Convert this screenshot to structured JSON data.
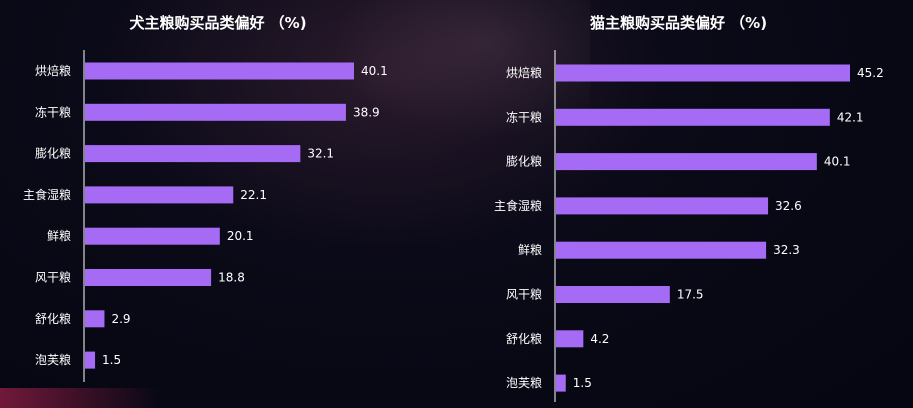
{
  "chart_data": [
    {
      "type": "bar",
      "orientation": "horizontal",
      "title": "犬主粮购买品类偏好 （%)",
      "categories": [
        "烘焙粮",
        "冻干粮",
        "膨化粮",
        "主食湿粮",
        "鲜粮",
        "风干粮",
        "舒化粮",
        "泡芙粮"
      ],
      "values": [
        40.1,
        38.9,
        32.1,
        22.1,
        20.1,
        18.8,
        2.9,
        1.5
      ],
      "value_labels": [
        "40.1",
        "38.9",
        "32.1",
        "22.1",
        "20.1",
        "18.8",
        "2.9",
        "1.5"
      ],
      "xlim": [
        0,
        40.1
      ],
      "grid": false,
      "bar_color": "#a66bf4"
    },
    {
      "type": "bar",
      "orientation": "horizontal",
      "title": "猫主粮购买品类偏好 （%)",
      "categories": [
        "烘焙粮",
        "冻干粮",
        "膨化粮",
        "主食湿粮",
        "鲜粮",
        "风干粮",
        "舒化粮",
        "泡芙粮"
      ],
      "values": [
        45.2,
        42.1,
        40.1,
        32.6,
        32.3,
        17.5,
        4.2,
        1.5
      ],
      "value_labels": [
        "45.2",
        "42.1",
        "40.1",
        "32.6",
        "32.3",
        "17.5",
        "4.2",
        "1.5"
      ],
      "xlim": [
        0,
        45.2
      ],
      "grid": false,
      "bar_color": "#a66bf4"
    }
  ]
}
